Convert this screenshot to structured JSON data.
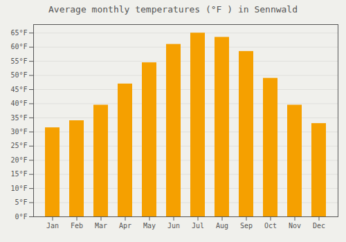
{
  "chart_data": {
    "type": "bar",
    "title": "Average monthly temperatures (°F ) in Sennwald",
    "categories": [
      "Jan",
      "Feb",
      "Mar",
      "Apr",
      "May",
      "Jun",
      "Jul",
      "Aug",
      "Sep",
      "Oct",
      "Nov",
      "Dec"
    ],
    "values": [
      31.5,
      34.0,
      39.5,
      47.0,
      54.5,
      61.0,
      65.0,
      63.5,
      58.5,
      49.0,
      39.5,
      33.0
    ],
    "color": "#F5A000",
    "ylim": [
      0,
      68
    ],
    "yticks": [
      {
        "value": 0,
        "label": "0°F"
      },
      {
        "value": 5,
        "label": "5°F"
      },
      {
        "value": 10,
        "label": "10°F"
      },
      {
        "value": 15,
        "label": "15°F"
      },
      {
        "value": 20,
        "label": "20°F"
      },
      {
        "value": 25,
        "label": "25°F"
      },
      {
        "value": 30,
        "label": "30°F"
      },
      {
        "value": 35,
        "label": "35°F"
      },
      {
        "value": 40,
        "label": "40°F"
      },
      {
        "value": 45,
        "label": "45°F"
      },
      {
        "value": 50,
        "label": "50°F"
      },
      {
        "value": 55,
        "label": "55°F"
      },
      {
        "value": 60,
        "label": "60°F"
      },
      {
        "value": 65,
        "label": "65°F"
      }
    ],
    "grid": true
  }
}
